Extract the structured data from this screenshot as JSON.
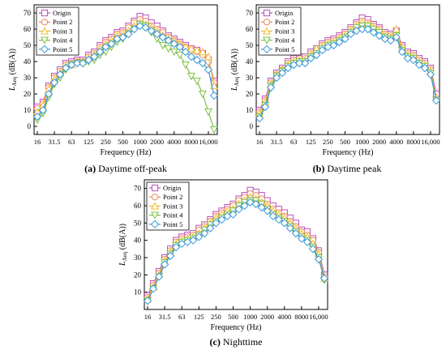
{
  "chart_data": [
    {
      "type": "line",
      "caption_label": "(a)",
      "caption_text": "Daytime off-peak",
      "xlabel": "Frequency (Hz)",
      "ylabel_main": "L",
      "ylabel_sub": "Aeq",
      "ylabel_unit": " (dB(A))",
      "ylim": [
        -5,
        75
      ],
      "yticks": [
        0,
        10,
        20,
        30,
        40,
        50,
        60,
        70
      ],
      "xtick_labels": [
        "16",
        "31.5",
        "63",
        "125",
        "250",
        "500",
        "1000",
        "2000",
        "4000",
        "8000",
        "16,000"
      ],
      "legend_position": "top-left",
      "x": [
        "16",
        "20",
        "25",
        "31.5",
        "40",
        "50",
        "63",
        "80",
        "100",
        "125",
        "160",
        "200",
        "250",
        "315",
        "400",
        "500",
        "630",
        "800",
        "1000",
        "1250",
        "1600",
        "2000",
        "2500",
        "3150",
        "4000",
        "5000",
        "6300",
        "8000",
        "10000",
        "12500",
        "16000",
        "20000"
      ],
      "series": [
        {
          "name": "Origin",
          "color": "#b94fc0",
          "marker": "square",
          "values": [
            12,
            15,
            25,
            31,
            35,
            39,
            40,
            41,
            41,
            44,
            46,
            50,
            53,
            55,
            58,
            59,
            62,
            65,
            68,
            67,
            64,
            62,
            59,
            56,
            54,
            52,
            50,
            48,
            47,
            45,
            41,
            28
          ]
        },
        {
          "name": "Point 2",
          "color": "#f08a5d",
          "marker": "circle",
          "values": [
            11,
            14,
            24,
            30,
            34,
            38,
            39,
            40,
            40,
            43,
            45,
            49,
            52,
            54,
            57,
            58,
            61,
            64,
            66,
            65,
            62,
            60,
            58,
            55,
            53,
            51,
            49,
            47,
            46,
            44,
            40,
            27
          ]
        },
        {
          "name": "Point 3",
          "color": "#f5b82e",
          "marker": "triangle-up",
          "values": [
            9,
            13,
            23,
            29,
            33,
            37,
            38,
            40,
            40,
            42,
            44,
            48,
            51,
            53,
            56,
            57,
            59,
            62,
            64,
            63,
            61,
            59,
            56,
            54,
            53,
            51,
            49,
            48,
            47,
            46,
            43,
            25
          ]
        },
        {
          "name": "Point 4",
          "color": "#7cc142",
          "marker": "triangle-down",
          "values": [
            4,
            8,
            18,
            26,
            30,
            35,
            38,
            39,
            39,
            40,
            41,
            44,
            46,
            49,
            52,
            54,
            57,
            60,
            63,
            62,
            58,
            54,
            50,
            48,
            46,
            44,
            38,
            31,
            28,
            20,
            9,
            -2
          ]
        },
        {
          "name": "Point 5",
          "color": "#3a9ad9",
          "marker": "diamond",
          "values": [
            6,
            10,
            20,
            27,
            32,
            36,
            38,
            39,
            39,
            41,
            43,
            46,
            49,
            51,
            54,
            55,
            57,
            60,
            62,
            61,
            59,
            57,
            55,
            53,
            51,
            49,
            46,
            43,
            41,
            39,
            35,
            19
          ]
        }
      ]
    },
    {
      "type": "line",
      "caption_label": "(b)",
      "caption_text": "Daytime peak",
      "xlabel": "Frequency (Hz)",
      "ylabel_main": "L",
      "ylabel_sub": "Aeq",
      "ylabel_unit": " (dB(A))",
      "ylim": [
        -5,
        75
      ],
      "yticks": [
        0,
        10,
        20,
        30,
        40,
        50,
        60,
        70
      ],
      "xtick_labels": [
        "16",
        "31.5",
        "63",
        "125",
        "250",
        "500",
        "1000",
        "2000",
        "4000",
        "8000",
        "16,000"
      ],
      "legend_position": "top-left",
      "x": [
        "16",
        "20",
        "25",
        "31.5",
        "40",
        "50",
        "63",
        "80",
        "100",
        "125",
        "160",
        "200",
        "250",
        "315",
        "400",
        "500",
        "630",
        "800",
        "1000",
        "1250",
        "1600",
        "2000",
        "2500",
        "3150",
        "4000",
        "5000",
        "6300",
        "8000",
        "10000",
        "12500",
        "16000",
        "20000"
      ],
      "series": [
        {
          "name": "Origin",
          "color": "#b94fc0",
          "marker": "square",
          "values": [
            10,
            17,
            28,
            33,
            36,
            40,
            42,
            43,
            43,
            46,
            48,
            51,
            53,
            54,
            56,
            58,
            61,
            64,
            67,
            66,
            63,
            61,
            58,
            57,
            59,
            50,
            46,
            45,
            42,
            40,
            36,
            20
          ]
        },
        {
          "name": "Point 2",
          "color": "#f08a5d",
          "marker": "circle",
          "values": [
            9,
            16,
            27,
            32,
            35,
            39,
            41,
            42,
            42,
            45,
            47,
            50,
            52,
            53,
            55,
            57,
            60,
            63,
            65,
            64,
            62,
            60,
            57,
            56,
            58,
            49,
            45,
            44,
            41,
            39,
            35,
            17
          ]
        },
        {
          "name": "Point 3",
          "color": "#f5b82e",
          "marker": "triangle-up",
          "values": [
            8,
            15,
            26,
            32,
            35,
            38,
            40,
            41,
            41,
            44,
            48,
            49,
            51,
            52,
            54,
            56,
            59,
            62,
            64,
            63,
            61,
            59,
            56,
            55,
            60,
            48,
            44,
            43,
            40,
            38,
            34,
            18
          ]
        },
        {
          "name": "Point 4",
          "color": "#7cc142",
          "marker": "triangle-down",
          "values": [
            6,
            13,
            25,
            31,
            34,
            37,
            39,
            40,
            40,
            43,
            45,
            48,
            50,
            51,
            53,
            55,
            58,
            61,
            62,
            62,
            60,
            58,
            55,
            54,
            56,
            47,
            43,
            42,
            39,
            37,
            33,
            16
          ]
        },
        {
          "name": "Point 5",
          "color": "#3a9ad9",
          "marker": "diamond",
          "values": [
            5,
            12,
            24,
            30,
            33,
            36,
            38,
            39,
            39,
            42,
            44,
            47,
            49,
            50,
            52,
            54,
            57,
            59,
            60,
            60,
            58,
            56,
            54,
            53,
            55,
            46,
            42,
            41,
            38,
            36,
            32,
            16
          ]
        }
      ]
    },
    {
      "type": "line",
      "caption_label": "(c)",
      "caption_text": "Nighttime",
      "xlabel": "Frequency (Hz)",
      "ylabel_main": "L",
      "ylabel_sub": "Aeq",
      "ylabel_unit": " (dB(A))",
      "ylim": [
        0,
        75
      ],
      "yticks": [
        10,
        20,
        30,
        40,
        50,
        60,
        70
      ],
      "xtick_labels": [
        "16",
        "31.5",
        "63",
        "125",
        "250",
        "500",
        "1000",
        "2000",
        "4000",
        "8000",
        "16,000"
      ],
      "legend_position": "top-left",
      "x": [
        "16",
        "20",
        "25",
        "31.5",
        "40",
        "50",
        "63",
        "80",
        "100",
        "125",
        "160",
        "200",
        "250",
        "315",
        "400",
        "500",
        "630",
        "800",
        "1000",
        "1250",
        "1600",
        "2000",
        "2500",
        "3150",
        "4000",
        "5000",
        "6300",
        "8000",
        "10000",
        "12500",
        "16000",
        "20000"
      ],
      "series": [
        {
          "name": "Origin",
          "color": "#b94fc0",
          "marker": "square",
          "values": [
            8,
            15,
            22,
            30,
            35,
            40,
            42,
            43,
            44,
            47,
            49,
            52,
            55,
            57,
            59,
            61,
            64,
            66,
            69,
            68,
            66,
            63,
            60,
            58,
            56,
            53,
            50,
            46,
            45,
            41,
            34,
            20
          ]
        },
        {
          "name": "Point 2",
          "color": "#f08a5d",
          "marker": "circle",
          "values": [
            7,
            14,
            21,
            29,
            34,
            39,
            41,
            42,
            43,
            46,
            48,
            51,
            54,
            56,
            58,
            60,
            63,
            65,
            67,
            66,
            64,
            61,
            58,
            56,
            54,
            51,
            48,
            45,
            43,
            40,
            33,
            19
          ]
        },
        {
          "name": "Point 3",
          "color": "#f5b82e",
          "marker": "triangle-up",
          "values": [
            6,
            13,
            20,
            28,
            33,
            38,
            40,
            41,
            42,
            44,
            47,
            50,
            53,
            55,
            57,
            58,
            61,
            63,
            65,
            64,
            62,
            60,
            57,
            55,
            53,
            50,
            47,
            44,
            42,
            38,
            32,
            18
          ]
        },
        {
          "name": "Point 4",
          "color": "#7cc142",
          "marker": "triangle-down",
          "values": [
            5,
            12,
            19,
            27,
            32,
            37,
            39,
            40,
            41,
            43,
            46,
            49,
            51,
            53,
            55,
            57,
            60,
            62,
            63,
            63,
            61,
            58,
            55,
            53,
            51,
            48,
            45,
            42,
            40,
            36,
            30,
            17
          ]
        },
        {
          "name": "Point 5",
          "color": "#3a9ad9",
          "marker": "diamond",
          "values": [
            5,
            12,
            19,
            26,
            31,
            36,
            38,
            39,
            40,
            42,
            44,
            47,
            50,
            52,
            54,
            55,
            58,
            60,
            62,
            61,
            59,
            57,
            54,
            52,
            50,
            47,
            44,
            41,
            39,
            35,
            29,
            18
          ]
        }
      ]
    }
  ]
}
